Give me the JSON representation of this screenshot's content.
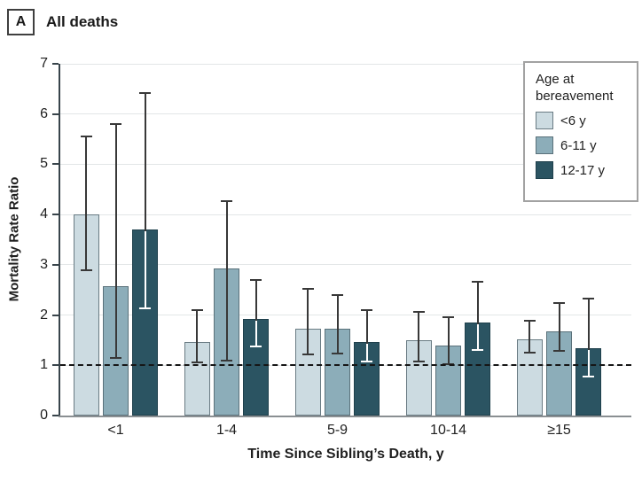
{
  "panel": {
    "letter": "A",
    "title": "All deaths"
  },
  "chart_data": {
    "type": "bar",
    "title": "All deaths",
    "categories": [
      "<1",
      "1-4",
      "5-9",
      "10-14",
      "≥15"
    ],
    "xlabel": "Time Since Sibling’s Death, y",
    "ylabel": "Mortality Rate Ratio",
    "ylim": [
      0,
      7
    ],
    "yticks": [
      0,
      1,
      2,
      3,
      4,
      5,
      6,
      7
    ],
    "grid": "horizontal",
    "reference_line_y": 1,
    "legend_title": "Age at bereavement",
    "legend_position": "top-right",
    "error_bars": "95% CI whiskers with caps",
    "series": [
      {
        "name": "<6 y",
        "color": "#ccdbe1",
        "border_color": "#697b83",
        "values": [
          4.0,
          1.47,
          1.73,
          1.5,
          1.52
        ],
        "ci_low": [
          2.9,
          1.05,
          1.21,
          1.08,
          1.26
        ],
        "ci_high": [
          5.55,
          2.1,
          2.52,
          2.07,
          1.88
        ]
      },
      {
        "name": "6-11 y",
        "color": "#8cadb9",
        "border_color": "#5a717a",
        "values": [
          2.58,
          2.92,
          1.73,
          1.4,
          1.68
        ],
        "ci_low": [
          1.15,
          1.1,
          1.24,
          1.03,
          1.28
        ],
        "ci_high": [
          5.8,
          4.27,
          2.4,
          1.95,
          2.24
        ]
      },
      {
        "name": "12-17 y",
        "color": "#2b5462",
        "border_color": "#1f404c",
        "values": [
          3.7,
          1.93,
          1.47,
          1.85,
          1.34
        ],
        "ci_low": [
          2.13,
          1.38,
          1.08,
          1.3,
          0.78
        ],
        "ci_high": [
          6.42,
          2.7,
          2.1,
          2.66,
          2.32
        ]
      }
    ],
    "colors": {
      "gridline": "#e3e6e7",
      "whisker": "#383838",
      "whisker_on_dark": "#ffffff",
      "axis_y": "#38444b",
      "axis_x": "#8a8f92",
      "reference_line": "#161616",
      "text": "#1f1f1f"
    }
  }
}
